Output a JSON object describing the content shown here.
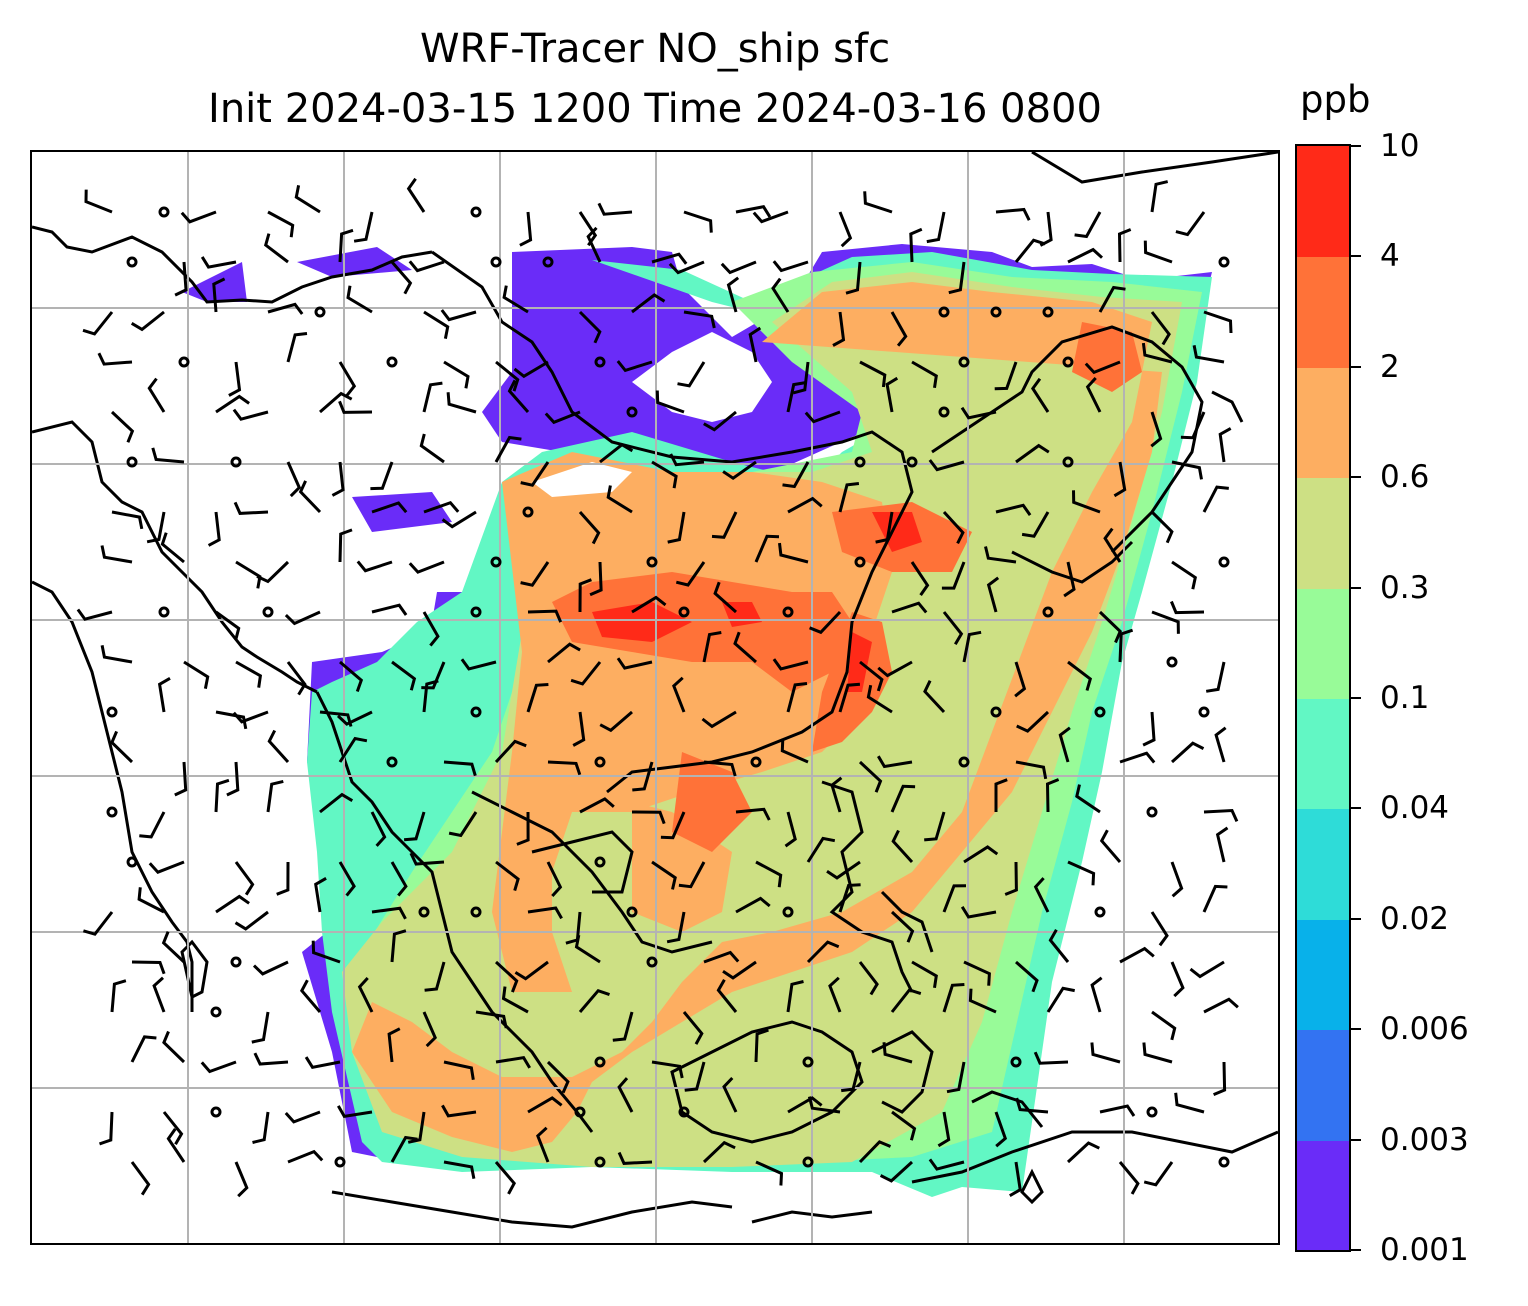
{
  "title": {
    "line1": "WRF-Tracer NO_ship sfc",
    "line2": "Init 2024-03-15 1200 Time 2024-03-16 0800"
  },
  "colorbar": {
    "unit": "ppb",
    "ticks": [
      "0.001",
      "0.003",
      "0.006",
      "0.02",
      "0.04",
      "0.1",
      "0.3",
      "0.6",
      "2",
      "4",
      "10"
    ],
    "colors": [
      "#6a2cf8",
      "#3373f2",
      "#08b1ea",
      "#2edcd8",
      "#62f7c4",
      "#98fb98",
      "#cde084",
      "#fdae61",
      "#ff7238",
      "#ff2a18"
    ]
  },
  "map": {
    "field": "NO_ship sfc concentration (ppb) with wind barbs",
    "gridlines": true,
    "colors": {
      "coast": "#000000",
      "grid": "#b3b3b3",
      "barb": "#000000"
    }
  }
}
